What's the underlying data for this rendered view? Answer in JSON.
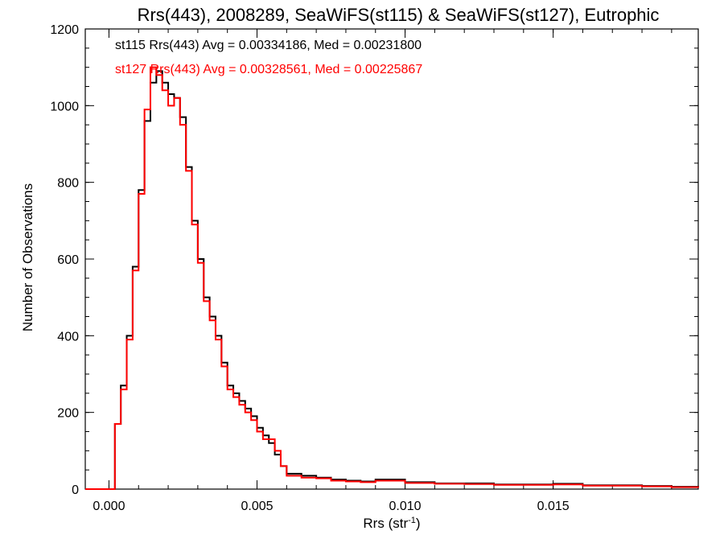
{
  "chart_data": {
    "type": "line",
    "step": true,
    "title": "Rrs(443), 2008289, SeaWiFS(st115) & SeaWiFS(st127), Eutrophic",
    "xlabel_base": "Rrs (str",
    "xlabel_sup": "-1",
    "xlabel_end": ")",
    "ylabel": "Number of Observations",
    "xlim": [
      -0.0008,
      0.0199
    ],
    "ylim": [
      0,
      1200
    ],
    "xticks": [
      0.0,
      0.005,
      0.01,
      0.015
    ],
    "xtick_labels": [
      "0.000",
      "0.005",
      "0.010",
      "0.015"
    ],
    "xminor_step": 0.001,
    "yticks": [
      0,
      200,
      400,
      600,
      800,
      1000,
      1200
    ],
    "ytick_labels": [
      "0",
      "200",
      "400",
      "600",
      "800",
      "1000",
      "1200"
    ],
    "yminor_step": 50,
    "grid": false,
    "annotations": [
      {
        "text": "st115 Rrs(443) Avg = 0.00334186, Med = 0.00231800",
        "color": "#000000"
      },
      {
        "text": "st127 Rrs(443) Avg = 0.00328561, Med = 0.00225867",
        "color": "#ff0000"
      }
    ],
    "series": [
      {
        "name": "st115",
        "color": "#000000",
        "x": [
          -0.0008,
          0.0,
          0.0002,
          0.0004,
          0.0006,
          0.0008,
          0.001,
          0.0012,
          0.0014,
          0.0016,
          0.0018,
          0.002,
          0.0022,
          0.0024,
          0.0026,
          0.0028,
          0.003,
          0.0032,
          0.0034,
          0.0036,
          0.0038,
          0.004,
          0.0042,
          0.0044,
          0.0046,
          0.0048,
          0.005,
          0.0052,
          0.0054,
          0.0056,
          0.0058,
          0.006,
          0.0065,
          0.007,
          0.0075,
          0.008,
          0.0085,
          0.009,
          0.01,
          0.011,
          0.012,
          0.013,
          0.014,
          0.015,
          0.016,
          0.017,
          0.018,
          0.019,
          0.0199
        ],
        "y": [
          0,
          0,
          170,
          270,
          400,
          580,
          780,
          960,
          1060,
          1090,
          1060,
          1030,
          1020,
          970,
          840,
          700,
          600,
          500,
          450,
          400,
          330,
          270,
          250,
          230,
          210,
          190,
          160,
          140,
          120,
          90,
          60,
          40,
          35,
          30,
          25,
          22,
          20,
          25,
          18,
          15,
          15,
          12,
          12,
          14,
          10,
          10,
          8,
          6,
          5
        ]
      },
      {
        "name": "st127",
        "color": "#ff0000",
        "x": [
          -0.0008,
          0.0,
          0.0002,
          0.0004,
          0.0006,
          0.0008,
          0.001,
          0.0012,
          0.0014,
          0.0016,
          0.0018,
          0.002,
          0.0022,
          0.0024,
          0.0026,
          0.0028,
          0.003,
          0.0032,
          0.0034,
          0.0036,
          0.0038,
          0.004,
          0.0042,
          0.0044,
          0.0046,
          0.0048,
          0.005,
          0.0052,
          0.0054,
          0.0056,
          0.0058,
          0.006,
          0.0065,
          0.007,
          0.0075,
          0.008,
          0.0085,
          0.009,
          0.01,
          0.011,
          0.012,
          0.013,
          0.014,
          0.015,
          0.016,
          0.017,
          0.018,
          0.019,
          0.0199
        ],
        "y": [
          0,
          0,
          170,
          260,
          390,
          570,
          770,
          990,
          1100,
          1080,
          1040,
          1000,
          1020,
          950,
          830,
          690,
          590,
          490,
          440,
          390,
          320,
          260,
          240,
          220,
          200,
          180,
          150,
          130,
          130,
          100,
          60,
          35,
          30,
          28,
          22,
          20,
          18,
          22,
          16,
          14,
          13,
          11,
          11,
          12,
          9,
          9,
          7,
          5,
          4
        ]
      }
    ]
  }
}
